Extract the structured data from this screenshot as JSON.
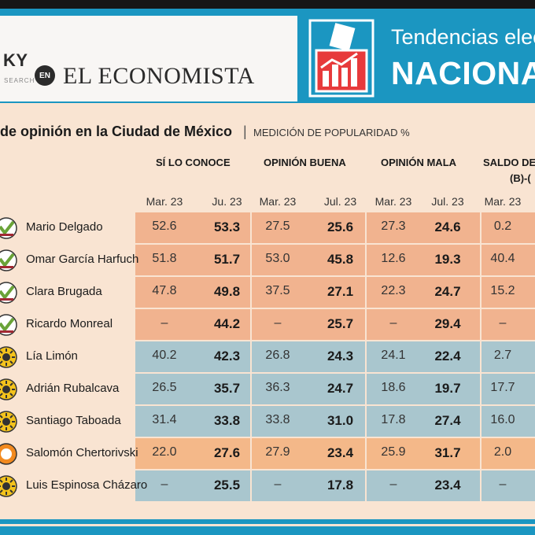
{
  "header": {
    "brand_name": "KY",
    "brand_sub": "SEARCH",
    "en_badge": "EN",
    "publication": "EL ECONOMISTA",
    "section_title": "Tendencias electo",
    "section_subtitle": "NACIONA",
    "colors": {
      "blue": "#1b96c1",
      "dark": "#161616"
    }
  },
  "table": {
    "title": "de opinión en la Ciudad de México",
    "separator": "|",
    "subtitle": "MEDICIÓN DE POPULARIDAD %",
    "groups": [
      "SÍ LO CONOCE",
      "OPINIÓN BUENA",
      "OPINIÓN MALA",
      "SALDO DE O"
    ],
    "group_note": "(B)-(",
    "periods": [
      "Mar. 23",
      "Ju. 23",
      "Mar. 23",
      "Jul. 23",
      "Mar. 23",
      "Jul. 23",
      "Mar. 23"
    ],
    "rows": [
      {
        "name": "Mario Delgado",
        "party": "morena-icon",
        "values": [
          "52.6",
          "53.3",
          "27.5",
          "25.6",
          "27.3",
          "24.6",
          "0.2"
        ],
        "color": "#f1b38f"
      },
      {
        "name": "Omar García Harfuch",
        "party": "morena-icon",
        "values": [
          "51.8",
          "51.7",
          "53.0",
          "45.8",
          "12.6",
          "19.3",
          "40.4"
        ],
        "color": "#f1b38f"
      },
      {
        "name": "Clara Brugada",
        "party": "morena-icon",
        "values": [
          "47.8",
          "49.8",
          "37.5",
          "27.1",
          "22.3",
          "24.7",
          "15.2"
        ],
        "color": "#f1b38f"
      },
      {
        "name": "Ricardo Monreal",
        "party": "morena-icon",
        "values": [
          "–",
          "44.2",
          "–",
          "25.7",
          "–",
          "29.4",
          "–"
        ],
        "color": "#f1b38f"
      },
      {
        "name": "Lía Limón",
        "party": "prd-icon",
        "values": [
          "40.2",
          "42.3",
          "26.8",
          "24.3",
          "24.1",
          "22.4",
          "2.7"
        ],
        "color": "#a9c6ce"
      },
      {
        "name": "Adrián Rubalcava",
        "party": "prd-icon",
        "values": [
          "26.5",
          "35.7",
          "36.3",
          "24.7",
          "18.6",
          "19.7",
          "17.7"
        ],
        "color": "#a9c6ce"
      },
      {
        "name": "Santiago Taboada",
        "party": "prd-icon",
        "values": [
          "31.4",
          "33.8",
          "33.8",
          "31.0",
          "17.8",
          "27.4",
          "16.0"
        ],
        "color": "#a9c6ce"
      },
      {
        "name": "Salomón Chertorivski",
        "party": "mc-icon",
        "values": [
          "22.0",
          "27.6",
          "27.9",
          "23.4",
          "25.9",
          "31.7",
          "2.0"
        ],
        "color": "#f4b889"
      },
      {
        "name": "Luis Espinosa Cházaro",
        "party": "prd-icon",
        "values": [
          "–",
          "25.5",
          "–",
          "17.8",
          "–",
          "23.4",
          "–"
        ],
        "color": "#a9c6ce"
      }
    ]
  }
}
